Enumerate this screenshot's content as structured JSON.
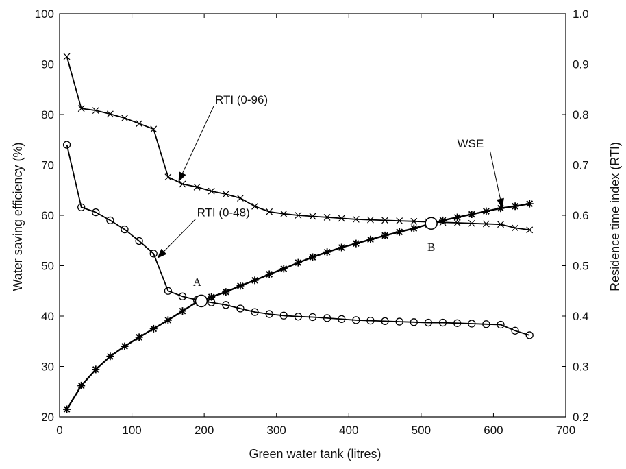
{
  "chart_data": {
    "type": "line",
    "xlabel": "Green water tank (litres)",
    "ylabel_left": "Water saving efficiency (%)",
    "ylabel_right": "Residence time index (RTI)",
    "xlim": [
      0,
      700
    ],
    "ylim_left": [
      20,
      100
    ],
    "ylim_right": [
      0.2,
      1.0
    ],
    "x_ticks": [
      "0",
      "100",
      "200",
      "300",
      "400",
      "500",
      "600",
      "700"
    ],
    "y_left_ticks": [
      "20",
      "30",
      "40",
      "50",
      "60",
      "70",
      "80",
      "90",
      "100"
    ],
    "y_right_ticks": [
      "0.2",
      "0.3",
      "0.4",
      "0.5",
      "0.6",
      "0.7",
      "0.8",
      "0.9",
      "1.0"
    ],
    "grid": false,
    "series": [
      {
        "name": "RTI (0-96)",
        "axis": "right",
        "marker": "x",
        "x": [
          10,
          30,
          50,
          70,
          90,
          110,
          130,
          150,
          170,
          190,
          210,
          230,
          250,
          270,
          290,
          310,
          330,
          350,
          370,
          390,
          410,
          430,
          450,
          470,
          490,
          510,
          530,
          550,
          570,
          590,
          610,
          630,
          650
        ],
        "y": [
          0.915,
          0.812,
          0.808,
          0.801,
          0.793,
          0.782,
          0.771,
          0.676,
          0.662,
          0.656,
          0.648,
          0.642,
          0.634,
          0.618,
          0.607,
          0.603,
          0.6,
          0.598,
          0.596,
          0.594,
          0.592,
          0.591,
          0.59,
          0.589,
          0.588,
          0.587,
          0.586,
          0.585,
          0.584,
          0.583,
          0.582,
          0.575,
          0.571
        ]
      },
      {
        "name": "RTI (0-48)",
        "axis": "right",
        "marker": "o",
        "x": [
          10,
          30,
          50,
          70,
          90,
          110,
          130,
          150,
          170,
          190,
          210,
          230,
          250,
          270,
          290,
          310,
          330,
          350,
          370,
          390,
          410,
          430,
          450,
          470,
          490,
          510,
          530,
          550,
          570,
          590,
          610,
          630,
          650
        ],
        "y": [
          0.74,
          0.616,
          0.606,
          0.59,
          0.572,
          0.549,
          0.524,
          0.45,
          0.439,
          0.432,
          0.427,
          0.422,
          0.415,
          0.408,
          0.404,
          0.401,
          0.399,
          0.398,
          0.396,
          0.394,
          0.392,
          0.391,
          0.39,
          0.389,
          0.388,
          0.387,
          0.387,
          0.386,
          0.385,
          0.384,
          0.383,
          0.371,
          0.362
        ]
      },
      {
        "name": "WSE",
        "axis": "left",
        "marker": "*",
        "x": [
          10,
          30,
          50,
          70,
          90,
          110,
          130,
          150,
          170,
          190,
          210,
          230,
          250,
          270,
          290,
          310,
          330,
          350,
          370,
          390,
          410,
          430,
          450,
          470,
          490,
          510,
          530,
          550,
          570,
          590,
          610,
          630,
          650
        ],
        "y": [
          21.5,
          26.2,
          29.4,
          32.0,
          34.0,
          35.8,
          37.5,
          39.2,
          41.0,
          42.8,
          43.8,
          44.8,
          46.0,
          47.1,
          48.3,
          49.4,
          50.6,
          51.7,
          52.7,
          53.6,
          54.4,
          55.2,
          56.0,
          56.7,
          57.4,
          58.2,
          59.0,
          59.6,
          60.2,
          60.8,
          61.4,
          61.8,
          62.3
        ]
      }
    ],
    "annotations": [
      {
        "text": "RTI (0-96)",
        "x": 215,
        "y_left": 82.2,
        "arrow_to_x": 165,
        "arrow_to_y_left": 66.8
      },
      {
        "text": "RTI (0-48)",
        "x": 190,
        "y_left": 59.8,
        "arrow_to_x": 136,
        "arrow_to_y_left": 51.6
      },
      {
        "text": "WSE",
        "x": 550,
        "y_left": 73.5,
        "arrow_to_x": 612,
        "arrow_to_y_left": 61.6
      }
    ],
    "points": [
      {
        "label": "A",
        "x": 196,
        "y_left": 43.0
      },
      {
        "label": "B",
        "x": 514,
        "y_left": 58.4
      }
    ]
  }
}
